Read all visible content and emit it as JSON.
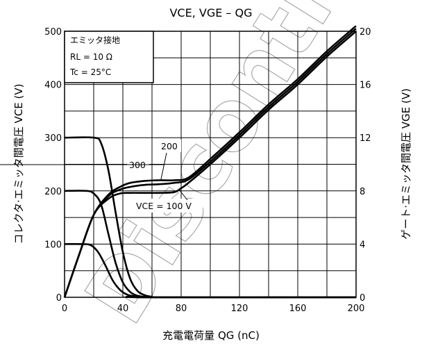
{
  "chart_data": {
    "type": "line",
    "title": "VCE, VGE – QG",
    "xlabel": "充電電荷量 QG (nC)",
    "ylabel_left": "コレクタ·エミッタ間電圧 VCE (V)",
    "ylabel_right": "ゲート·エミッタ間電圧 VGE (V)",
    "xlim": [
      0,
      200
    ],
    "ylim_left": [
      0,
      500
    ],
    "ylim_right": [
      0,
      20
    ],
    "x_ticks": [
      "0",
      "40",
      "80",
      "120",
      "160",
      "200"
    ],
    "y_left_ticks": [
      "0",
      "100",
      "200",
      "300",
      "400",
      "500"
    ],
    "y_right_ticks": [
      "0",
      "4",
      "8",
      "12",
      "16",
      "20"
    ],
    "grid": true,
    "conditions": [
      "エミッタ接地",
      "RL = 10 Ω",
      "Tc = 25°C"
    ],
    "curve_labels": [
      "300",
      "200",
      "VCE = 100 V"
    ],
    "watermark": "Discontinued",
    "series": [
      {
        "axis": "left",
        "label": "300",
        "x": [
          0,
          20,
          25,
          30,
          35,
          40,
          45,
          50,
          55,
          60,
          65,
          200
        ],
        "y": [
          300,
          300,
          290,
          240,
          160,
          85,
          35,
          12,
          4,
          1,
          0,
          0
        ]
      },
      {
        "axis": "left",
        "label": "200",
        "x": [
          0,
          15,
          20,
          25,
          30,
          35,
          40,
          45,
          50,
          55,
          60,
          200
        ],
        "y": [
          200,
          200,
          195,
          175,
          120,
          65,
          28,
          10,
          3,
          1,
          0,
          0
        ]
      },
      {
        "axis": "left",
        "label": "100",
        "x": [
          0,
          12,
          18,
          23,
          28,
          33,
          38,
          43,
          48,
          55,
          200
        ],
        "y": [
          100,
          100,
          98,
          85,
          60,
          32,
          14,
          5,
          2,
          0,
          0
        ]
      },
      {
        "axis": "right",
        "label": "300",
        "x": [
          0,
          10,
          20,
          30,
          38,
          45,
          55,
          65,
          75,
          85,
          100,
          120,
          140,
          160,
          180,
          200
        ],
        "y": [
          0,
          3.2,
          6.2,
          7.7,
          8.3,
          8.6,
          8.75,
          8.8,
          8.8,
          9.0,
          10.4,
          12.4,
          14.5,
          16.4,
          18.5,
          20.4
        ]
      },
      {
        "axis": "right",
        "label": "200",
        "x": [
          0,
          10,
          20,
          30,
          38,
          45,
          55,
          65,
          75,
          85,
          100,
          120,
          140,
          160,
          180,
          200
        ],
        "y": [
          0,
          3.2,
          6.2,
          7.6,
          8.1,
          8.3,
          8.45,
          8.5,
          8.6,
          8.85,
          10.2,
          12.2,
          14.3,
          16.2,
          18.3,
          20.2
        ]
      },
      {
        "axis": "right",
        "label": "100",
        "x": [
          0,
          10,
          20,
          30,
          38,
          45,
          55,
          65,
          75,
          80,
          85,
          100,
          120,
          140,
          160,
          180,
          200
        ],
        "y": [
          0,
          3.2,
          6.2,
          7.4,
          7.8,
          7.85,
          7.85,
          7.85,
          7.9,
          8.2,
          8.6,
          10.0,
          12.0,
          14.1,
          16.0,
          18.1,
          20.0
        ]
      }
    ]
  }
}
